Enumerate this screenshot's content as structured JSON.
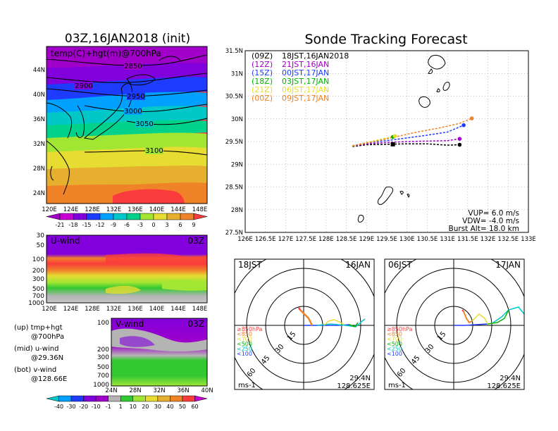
{
  "left_map": {
    "title": "03Z,16JAN2018 (init)",
    "subtitle": "temp(C)+hgt(m)@700hPa",
    "lat_labels": [
      "44N",
      "40N",
      "36N",
      "32N",
      "28N",
      "24N"
    ],
    "lon_labels": [
      "120E",
      "124E",
      "128E",
      "132E",
      "136E",
      "140E",
      "144E",
      "148E"
    ],
    "contour_labels": [
      "2850",
      "2900",
      "2950",
      "3000",
      "3050",
      "3100"
    ],
    "colorbar_labels": [
      "-21",
      "-18",
      "-15",
      "-12",
      "-9",
      "-6",
      "-3",
      "0",
      "3",
      "6",
      "9"
    ],
    "colorbar_colors": [
      "#a000c8",
      "#c800d2",
      "#8200dc",
      "#1e3cff",
      "#00a0ff",
      "#00c8c8",
      "#00d28c",
      "#a0e632",
      "#e6dc32",
      "#e6af2d",
      "#f08228",
      "#fa3c3c"
    ]
  },
  "uwind": {
    "title": "U-wind",
    "time": "03Z",
    "levels": [
      "30",
      "50",
      "100",
      "200",
      "300",
      "500",
      "700",
      "1000"
    ],
    "lon_labels": [
      "120E",
      "124E",
      "128E",
      "132E",
      "136E",
      "140E",
      "144E",
      "148E"
    ]
  },
  "vwind": {
    "title": "V-wind",
    "time": "03Z",
    "levels": [
      "100",
      "200",
      "300",
      "500",
      "700",
      "1000"
    ],
    "lat_labels": [
      "24N",
      "28N",
      "32N",
      "36N",
      "40N"
    ]
  },
  "legend_notes": [
    {
      "a": "(up) tmp+hgt",
      "b": "@700hPa"
    },
    {
      "a": "(mid) u-wind",
      "b": "@29.36N"
    },
    {
      "a": "(bot) v-wind",
      "b": "@128.66E"
    }
  ],
  "wind_colorbar": {
    "labels": [
      "-40",
      "-30",
      "-20",
      "-10",
      "-1",
      "1",
      "10",
      "20",
      "30",
      "40",
      "50",
      "60"
    ],
    "colors": [
      "#00c8c8",
      "#00a0ff",
      "#1e3cff",
      "#8200dc",
      "#a000c8",
      "#b4b4b4",
      "#32c832",
      "#a0e632",
      "#e6dc32",
      "#e6af2d",
      "#f08228",
      "#fa3c3c",
      "#c800d2"
    ]
  },
  "tracking": {
    "title": "Sonde Tracking Forecast",
    "legend": [
      {
        "code": "(09Z)",
        "label": "18JST,16JAN2018",
        "color": "#000000"
      },
      {
        "code": "(12Z)",
        "label": "21JST,16JAN",
        "color": "#a000c8"
      },
      {
        "code": "(15Z)",
        "label": "00JST,17JAN",
        "color": "#1e3cff"
      },
      {
        "code": "(18Z)",
        "label": "03JST,17JAN",
        "color": "#00b400"
      },
      {
        "code": "(21Z)",
        "label": "06JST,17JAN",
        "color": "#e6dc32"
      },
      {
        "code": "(00Z)",
        "label": "09JST,17JAN",
        "color": "#f08228"
      }
    ],
    "params": [
      "VUP= 6.0 m/s",
      "VDW= -4.0 m/s",
      "Burst Alt= 18.0 km"
    ]
  },
  "hodo_left": {
    "time": "18JST",
    "date": "16JAN",
    "lat": "29.4N",
    "lon": "128.625E",
    "unit": "ms-1"
  },
  "hodo_right": {
    "time": "06JST",
    "date": "17JAN",
    "lat": "29.4N",
    "lon": "128.625E",
    "unit": "ms-1"
  },
  "hodo_legend": [
    {
      "label": "≥850hPa",
      "color": "#fa3c3c"
    },
    {
      "label": "<850",
      "color": "#f08228"
    },
    {
      "label": "<700",
      "color": "#e6dc32"
    },
    {
      "label": "<500",
      "color": "#00b400"
    },
    {
      "label": "<250",
      "color": "#00c8c8"
    },
    {
      "label": "<100",
      "color": "#1e3cff"
    }
  ],
  "hodo_ring_labels": [
    "15",
    "30",
    "45",
    "60"
  ],
  "chart_data": {
    "type": "line",
    "title": "Sonde Tracking Forecast",
    "xlim": [
      126,
      133
    ],
    "ylim": [
      27.5,
      31.5
    ],
    "x_ticks": [
      "126E",
      "126.5E",
      "127E",
      "127.5E",
      "128E",
      "128.5E",
      "129E",
      "129.5E",
      "130E",
      "130.5E",
      "131E",
      "131.5E",
      "132E",
      "132.5E",
      "133E"
    ],
    "y_ticks": [
      "27.5N",
      "28N",
      "28.5N",
      "29N",
      "29.5N",
      "30N",
      "30.5N",
      "31N",
      "31.5N"
    ],
    "grid": true,
    "legend_placement": "top-left",
    "series": [
      {
        "name": "(09Z) 18JST,16JAN2018",
        "color": "#000000",
        "x": [
          128.65,
          129.0,
          129.5,
          130.0,
          130.5,
          131.0,
          131.3
        ],
        "y": [
          29.39,
          29.43,
          29.44,
          29.45,
          29.45,
          29.42,
          29.43
        ]
      },
      {
        "name": "(12Z) 21JST,16JAN",
        "color": "#a000c8",
        "x": [
          128.65,
          129.0,
          129.5,
          130.0,
          130.5,
          131.0,
          131.3
        ],
        "y": [
          29.4,
          29.45,
          29.48,
          29.5,
          29.51,
          29.52,
          29.56
        ]
      },
      {
        "name": "(15Z) 00JST,17JAN",
        "color": "#1e3cff",
        "x": [
          128.65,
          129.0,
          129.5,
          130.0,
          130.5,
          131.0,
          131.4
        ],
        "y": [
          29.41,
          29.47,
          29.52,
          29.58,
          29.64,
          29.71,
          29.86
        ]
      },
      {
        "name": "(18Z) 03JST,17JAN",
        "color": "#00b400",
        "x": [
          128.65,
          129.0,
          129.5,
          129.65
        ],
        "y": [
          29.4,
          29.48,
          29.56,
          29.6
        ]
      },
      {
        "name": "(21Z) 06JST,17JAN",
        "color": "#e6dc32",
        "x": [
          128.65,
          129.0,
          129.5,
          129.7
        ],
        "y": [
          29.4,
          29.48,
          29.58,
          29.62
        ]
      },
      {
        "name": "(00Z) 09JST,17JAN",
        "color": "#f08228",
        "x": [
          128.65,
          129.2,
          129.7,
          130.2,
          130.8,
          131.3,
          131.6
        ],
        "y": [
          29.41,
          29.5,
          29.6,
          29.7,
          29.8,
          29.9,
          30.01
        ]
      }
    ],
    "endpoints": [
      {
        "x": 129.65,
        "y": 29.44,
        "color": "#000000",
        "shape": "square"
      },
      {
        "x": 131.3,
        "y": 29.43,
        "color": "#000000"
      },
      {
        "x": 131.3,
        "y": 29.56,
        "color": "#a000c8"
      },
      {
        "x": 131.4,
        "y": 29.86,
        "color": "#1e3cff"
      },
      {
        "x": 129.65,
        "y": 29.6,
        "color": "#00b400"
      },
      {
        "x": 129.7,
        "y": 29.62,
        "color": "#e6dc32"
      },
      {
        "x": 131.6,
        "y": 30.01,
        "color": "#f08228"
      }
    ]
  }
}
